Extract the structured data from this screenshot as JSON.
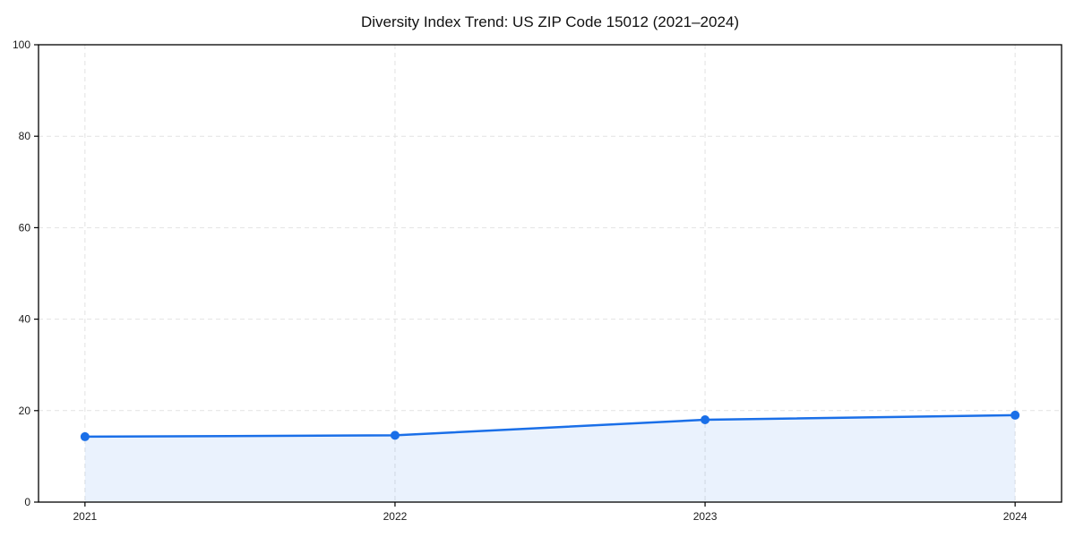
{
  "chart_data": {
    "type": "area",
    "title": "Diversity Index Trend: US ZIP Code 15012 (2021–2024)",
    "categories": [
      "2021",
      "2022",
      "2023",
      "2024"
    ],
    "series": [
      {
        "name": "Diversity Index",
        "values": [
          14.3,
          14.6,
          18.0,
          19.0
        ]
      }
    ],
    "xlabel": "",
    "ylabel": "",
    "ylim": [
      0,
      100
    ],
    "yticks": [
      0,
      20,
      40,
      60,
      80,
      100
    ],
    "grid": "both",
    "grid_style": "dashed",
    "legend": "none",
    "marker": "circle",
    "colors": {
      "line": "#1a6fe8",
      "marker": "#1a6fe8",
      "fill": "rgba(26, 111, 232, 0.09)",
      "grid": "#e2e2e2",
      "axis": "#000000",
      "text": "#1a1a1a",
      "background": "#ffffff"
    }
  }
}
